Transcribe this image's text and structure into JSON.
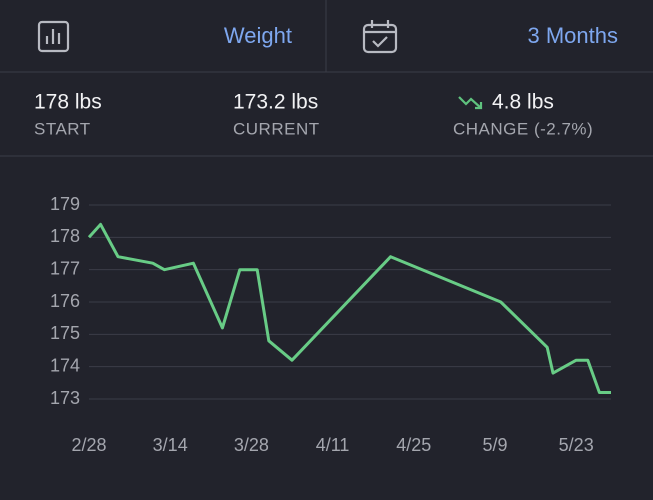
{
  "header": {
    "metric": "Weight",
    "range": "3 Months"
  },
  "stats": [
    {
      "value": "178 lbs",
      "label": "START"
    },
    {
      "value": "173.2 lbs",
      "label": "CURRENT"
    },
    {
      "value": "4.8 lbs",
      "label": "CHANGE (-2.7%)"
    }
  ],
  "chart_data": {
    "type": "line",
    "x": [
      "2/28",
      "3/2",
      "3/5",
      "3/11",
      "3/13",
      "3/18",
      "3/23",
      "3/26",
      "3/29",
      "3/31",
      "4/4",
      "4/21",
      "5/10",
      "5/18",
      "5/19",
      "5/23",
      "5/25",
      "5/27",
      "5/29"
    ],
    "series": [
      {
        "color": "#68cc86",
        "values": [
          178.0,
          178.4,
          177.4,
          177.2,
          177.0,
          177.2,
          175.2,
          177.0,
          177.0,
          174.8,
          174.2,
          177.4,
          176.0,
          174.6,
          173.8,
          174.2,
          174.2,
          173.2,
          173.2
        ]
      }
    ],
    "xlim": [
      "2/28",
      "5/29"
    ],
    "xticks": [
      "2/28",
      "3/14",
      "3/28",
      "4/11",
      "4/25",
      "5/9",
      "5/23"
    ],
    "ylim": [
      173,
      179
    ],
    "yticks": [
      173,
      174,
      175,
      176,
      177,
      178,
      179
    ],
    "grid": true
  }
}
